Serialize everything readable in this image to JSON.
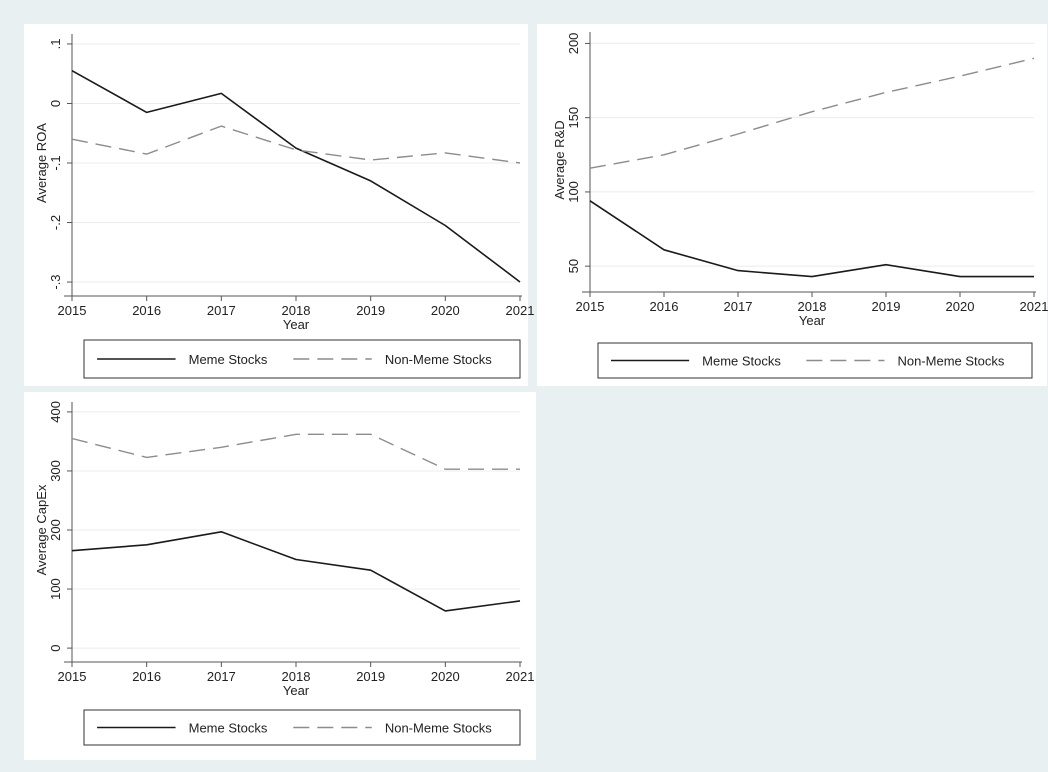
{
  "colors": {
    "outer_background": "#e8f0f2",
    "panel_background": "#ffffff",
    "meme_line": "#1a1a1a",
    "non_meme_line": "#8c8c8c",
    "gridline": "#ececec",
    "axis": "#555555"
  },
  "chart_data": [
    {
      "type": "line",
      "xlabel": "Year",
      "ylabel": "Average ROA",
      "x": [
        2015,
        2016,
        2017,
        2018,
        2019,
        2020,
        2021
      ],
      "xticks": [
        "2015",
        "2016",
        "2017",
        "2018",
        "2019",
        "2020",
        "2021"
      ],
      "ylim": [
        -0.31,
        0.11
      ],
      "yticks": [
        {
          "value": 0.1,
          "label": ".1"
        },
        {
          "value": 0,
          "label": "0"
        },
        {
          "value": -0.1,
          "label": "-.1"
        },
        {
          "value": -0.2,
          "label": "-.2"
        },
        {
          "value": -0.3,
          "label": "-.3"
        }
      ],
      "grid": true,
      "legend_position": "bottom",
      "series": [
        {
          "name": "Meme Stocks",
          "style": "solid",
          "values": [
            0.055,
            -0.015,
            0.017,
            -0.075,
            -0.13,
            -0.205,
            -0.3
          ]
        },
        {
          "name": "Non-Meme Stocks",
          "style": "dashed",
          "values": [
            -0.06,
            -0.085,
            -0.038,
            -0.078,
            -0.095,
            -0.083,
            -0.1
          ]
        }
      ]
    },
    {
      "type": "line",
      "xlabel": "Year",
      "ylabel": "Average R&D",
      "x": [
        2015,
        2016,
        2017,
        2018,
        2019,
        2020,
        2021
      ],
      "xticks": [
        "2015",
        "2016",
        "2017",
        "2018",
        "2019",
        "2020",
        "2021"
      ],
      "ylim": [
        38,
        205
      ],
      "yticks": [
        {
          "value": 200,
          "label": "200"
        },
        {
          "value": 150,
          "label": "150"
        },
        {
          "value": 100,
          "label": "100"
        },
        {
          "value": 50,
          "label": "50"
        }
      ],
      "grid": true,
      "legend_position": "bottom",
      "series": [
        {
          "name": "Meme Stocks",
          "style": "solid",
          "values": [
            94,
            61,
            47,
            43,
            51,
            43,
            43
          ]
        },
        {
          "name": "Non-Meme Stocks",
          "style": "dashed",
          "values": [
            116,
            125,
            139,
            154,
            167,
            178,
            190
          ]
        }
      ]
    },
    {
      "type": "line",
      "xlabel": "Year",
      "ylabel": "Average CapEx",
      "x": [
        2015,
        2016,
        2017,
        2018,
        2019,
        2020,
        2021
      ],
      "xticks": [
        "2015",
        "2016",
        "2017",
        "2018",
        "2019",
        "2020",
        "2021"
      ],
      "ylim": [
        -10,
        410
      ],
      "yticks": [
        {
          "value": 400,
          "label": "400"
        },
        {
          "value": 300,
          "label": "300"
        },
        {
          "value": 200,
          "label": "200"
        },
        {
          "value": 100,
          "label": "100"
        },
        {
          "value": 0,
          "label": "0"
        }
      ],
      "grid": true,
      "legend_position": "bottom",
      "series": [
        {
          "name": "Meme Stocks",
          "style": "solid",
          "values": [
            165,
            175,
            197,
            150,
            132,
            63,
            80
          ]
        },
        {
          "name": "Non-Meme Stocks",
          "style": "dashed",
          "values": [
            355,
            323,
            340,
            362,
            362,
            303,
            303
          ]
        }
      ]
    }
  ]
}
